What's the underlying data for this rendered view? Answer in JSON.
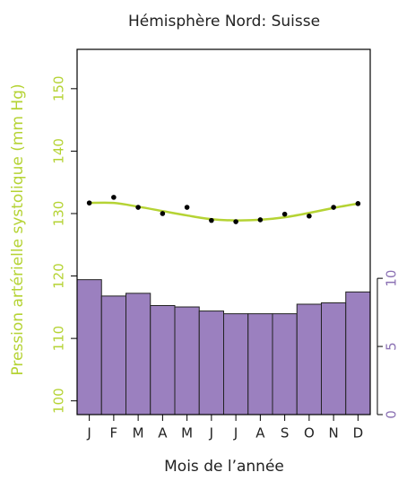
{
  "chart_data": {
    "type": "bar",
    "title": "Hémisphère Nord: Suisse",
    "x_label": "Mois de l’année",
    "y_label": "Pression artérielle systolique (mm Hg)",
    "y_label_color": "#b5d334",
    "y2_color": "#8c72b4",
    "categories": [
      "J",
      "F",
      "M",
      "A",
      "M",
      "J",
      "J",
      "A",
      "S",
      "O",
      "N",
      "D"
    ],
    "ylim": [
      97.8,
      156.3
    ],
    "yticks": [
      100,
      110,
      120,
      130,
      140,
      150
    ],
    "y2lim": [
      0,
      26.8
    ],
    "y2ticks": [
      0,
      5,
      10
    ],
    "series": [
      {
        "type": "bar",
        "axis": "y2",
        "color": "#9b80bf",
        "values": [
          9.9,
          8.7,
          8.9,
          8.0,
          7.9,
          7.6,
          7.4,
          7.4,
          7.4,
          8.1,
          8.2,
          9.0
        ]
      },
      {
        "type": "scatter",
        "color": "#000000",
        "values": [
          131.7,
          132.6,
          131.0,
          130.0,
          131.0,
          128.9,
          128.7,
          129.0,
          129.9,
          129.6,
          131.0,
          131.6
        ]
      },
      {
        "type": "line",
        "color": "#b5d334",
        "values": [
          131.7,
          131.7,
          131.1,
          130.4,
          129.7,
          129.1,
          128.9,
          129.0,
          129.4,
          130.1,
          130.9,
          131.6
        ]
      }
    ]
  }
}
